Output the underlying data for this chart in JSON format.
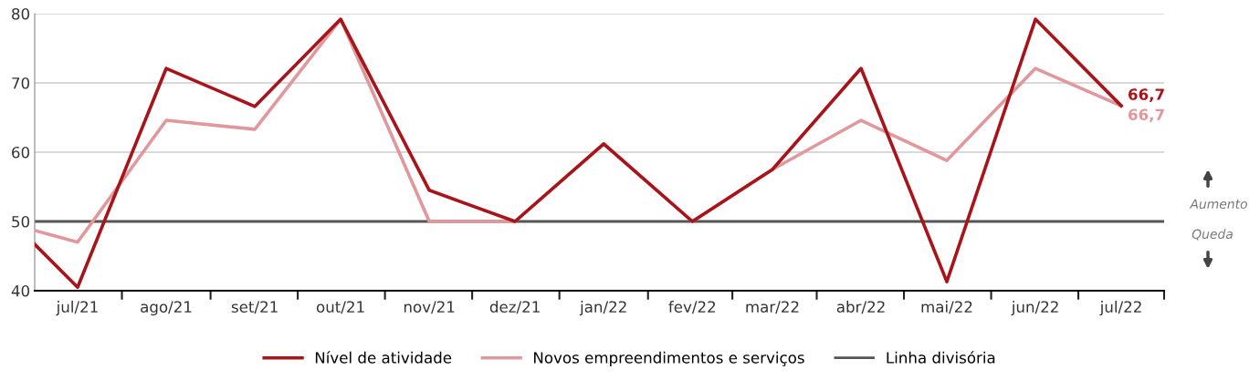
{
  "chart_data": {
    "type": "line",
    "x": [
      "2021-06-16",
      "2021-07-01",
      "2021-08-01",
      "2021-09-01",
      "2021-10-01",
      "2021-11-01",
      "2021-12-01",
      "2022-01-01",
      "2022-02-01",
      "2022-03-01",
      "2022-04-01",
      "2022-05-01",
      "2022-06-01",
      "2022-07-01"
    ],
    "xlim": [
      "2021-06-16",
      "2022-07-16"
    ],
    "xticks": [
      {
        "value": "2021-07-01",
        "label": "jul/21"
      },
      {
        "value": "2021-08-01",
        "label": "ago/21"
      },
      {
        "value": "2021-09-01",
        "label": "set/21"
      },
      {
        "value": "2021-10-01",
        "label": "out/21"
      },
      {
        "value": "2021-11-01",
        "label": "nov/21"
      },
      {
        "value": "2021-12-01",
        "label": "dez/21"
      },
      {
        "value": "2022-01-01",
        "label": "jan/22"
      },
      {
        "value": "2022-02-01",
        "label": "fev/22"
      },
      {
        "value": "2022-03-01",
        "label": "mar/22"
      },
      {
        "value": "2022-04-01",
        "label": "abr/22"
      },
      {
        "value": "2022-05-01",
        "label": "mai/22"
      },
      {
        "value": "2022-06-01",
        "label": "jun/22"
      },
      {
        "value": "2022-07-01",
        "label": "jul/22"
      }
    ],
    "ylim": [
      40,
      80
    ],
    "yticks": [
      40,
      50,
      60,
      70,
      80
    ],
    "grid": "y",
    "legend": "bottom",
    "series": [
      {
        "name": "Novos empreendimentos e serviços",
        "color": "#e0989c",
        "values": [
          48.7,
          47.0,
          64.6,
          63.3,
          79.2,
          50,
          50,
          61.2,
          50,
          57.5,
          64.6,
          58.8,
          72.1,
          66.7
        ],
        "value_labels": [
          null,
          null,
          null,
          null,
          null,
          null,
          null,
          null,
          null,
          null,
          null,
          null,
          null,
          "66,7"
        ]
      },
      {
        "name": "Nível de atividade",
        "color": "#a81419",
        "values": [
          46.7,
          40.5,
          72.1,
          66.6,
          79.2,
          54.5,
          50,
          61.2,
          50,
          57.5,
          72.1,
          41.3,
          79.2,
          66.7
        ],
        "value_labels": [
          null,
          null,
          null,
          null,
          null,
          null,
          null,
          null,
          null,
          null,
          null,
          null,
          null,
          "66,7"
        ]
      }
    ],
    "ref_lines": [
      {
        "axis": "y",
        "value": 50,
        "label": "Linha divisória",
        "color": "#555555"
      }
    ],
    "annotations": [
      "Aumento",
      "Queda"
    ]
  }
}
